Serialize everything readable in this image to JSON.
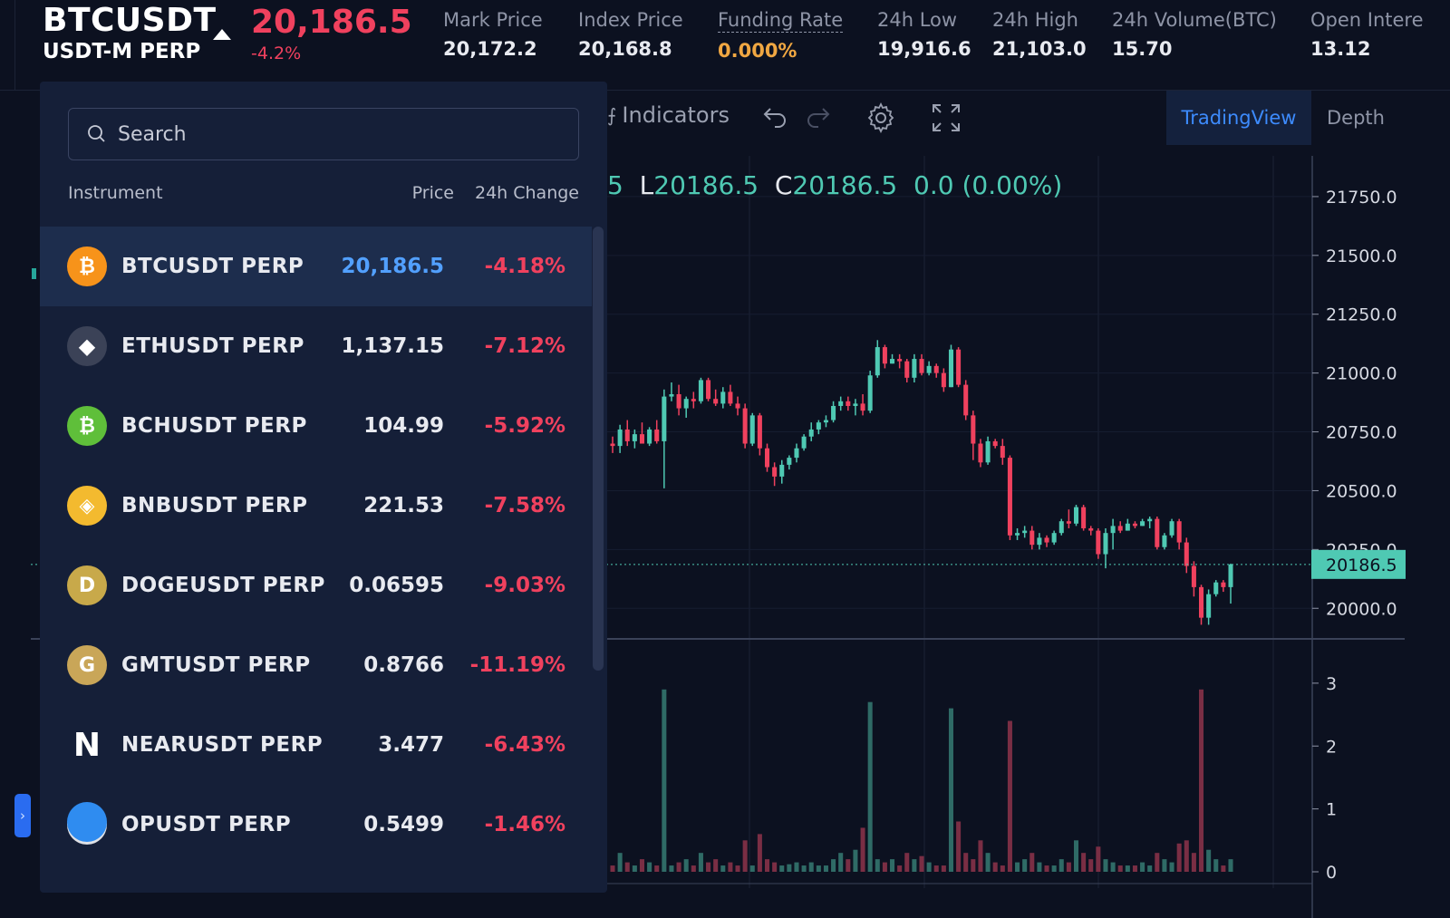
{
  "header": {
    "symbol": "BTCUSDT",
    "symbol_sub": "USDT-M PERP",
    "last_price": "20,186.5",
    "last_change": "-4.2%",
    "stats": [
      {
        "label": "Mark Price",
        "value": "20,172.2",
        "color": "#e8eaf0"
      },
      {
        "label": "Index Price",
        "value": "20,168.8",
        "color": "#e8eaf0"
      },
      {
        "label": "Funding Rate",
        "value": "0.000%",
        "color": "#f0a742"
      },
      {
        "label": "24h Low",
        "value": "19,916.6",
        "color": "#e8eaf0"
      },
      {
        "label": "24h High",
        "value": "21,103.0",
        "color": "#e8eaf0"
      },
      {
        "label": "24h Volume(BTC)",
        "value": "15.70",
        "color": "#e8eaf0"
      },
      {
        "label": "Open Intere",
        "value": "13.12",
        "color": "#e8eaf0"
      }
    ]
  },
  "toolbar": {
    "indicators_label": "Indicators",
    "tab_tradingview": "TradingView",
    "tab_depth": "Depth",
    "active_tab": "TradingView"
  },
  "ohlc": {
    "o_tail": "5",
    "l_key": "L",
    "l_val": "20186.5",
    "c_key": "C",
    "c_val": "20186.5",
    "change": "0.0 (0.00%)"
  },
  "dropdown": {
    "search_placeholder": "Search",
    "col_instrument": "Instrument",
    "col_price": "Price",
    "col_change": "24h Change",
    "rows": [
      {
        "name": "BTCUSDT PERP",
        "price": "20,186.5",
        "change": "-4.18%",
        "icon": "bitcoin-icon",
        "icon_color": "#f7931a",
        "glyph": "₿",
        "active": true
      },
      {
        "name": "ETHUSDT PERP",
        "price": "1,137.15",
        "change": "-7.12%",
        "icon": "ethereum-icon",
        "icon_color": "#3b4257",
        "glyph": "◆",
        "active": false
      },
      {
        "name": "BCHUSDT PERP",
        "price": "104.99",
        "change": "-5.92%",
        "icon": "bitcoin-cash-icon",
        "icon_color": "#5fbf3a",
        "glyph": "₿",
        "active": false
      },
      {
        "name": "BNBUSDT PERP",
        "price": "221.53",
        "change": "-7.58%",
        "icon": "bnb-icon",
        "icon_color": "#f3ba2f",
        "glyph": "◈",
        "active": false
      },
      {
        "name": "DOGEUSDT PERP",
        "price": "0.06595",
        "change": "-9.03%",
        "icon": "dogecoin-icon",
        "icon_color": "#c8a94a",
        "glyph": "D",
        "active": false
      },
      {
        "name": "GMTUSDT PERP",
        "price": "0.8766",
        "change": "-11.19%",
        "icon": "gmt-icon",
        "icon_color": "#c9a658",
        "glyph": "G",
        "active": false
      },
      {
        "name": "NEARUSDT PERP",
        "price": "3.477",
        "change": "-6.43%",
        "icon": "near-icon",
        "icon_color": "#151f38",
        "glyph": "N",
        "active": false
      },
      {
        "name": "OPUSDT PERP",
        "price": "0.5499",
        "change": "-1.46%",
        "icon": "op-icon",
        "icon_color": "#dfe1e6",
        "glyph": "≡",
        "active": false
      }
    ]
  },
  "chart_data": {
    "type": "candlestick",
    "price_ticks": [
      "21750.0",
      "21500.0",
      "21250.0",
      "21000.0",
      "20750.0",
      "20500.0",
      "20250.0",
      "20000.0"
    ],
    "price_ylim": [
      19870,
      21950
    ],
    "current_price": 20186.5,
    "current_price_label": "20186.5",
    "volume_ticks": [
      "3",
      "2",
      "1",
      "0"
    ],
    "volume_ylim": [
      0,
      3.2
    ],
    "up_color": "#4fc9b3",
    "down_color": "#f0415e",
    "candles": [
      [
        20700,
        20730,
        20660,
        20690
      ],
      [
        20690,
        20780,
        20660,
        20760
      ],
      [
        20760,
        20800,
        20690,
        20710
      ],
      [
        20710,
        20760,
        20680,
        20740
      ],
      [
        20740,
        20790,
        20700,
        20700
      ],
      [
        20700,
        20770,
        20690,
        20760
      ],
      [
        20760,
        20800,
        20700,
        20710
      ],
      [
        20710,
        20930,
        20510,
        20900
      ],
      [
        20900,
        20960,
        20880,
        20910
      ],
      [
        20910,
        20950,
        20820,
        20850
      ],
      [
        20850,
        20900,
        20810,
        20890
      ],
      [
        20890,
        20920,
        20850,
        20880
      ],
      [
        20880,
        20980,
        20870,
        20970
      ],
      [
        20970,
        20980,
        20880,
        20890
      ],
      [
        20890,
        20930,
        20860,
        20870
      ],
      [
        20870,
        20940,
        20850,
        20920
      ],
      [
        20920,
        20950,
        20860,
        20870
      ],
      [
        20870,
        20900,
        20820,
        20850
      ],
      [
        20850,
        20870,
        20680,
        20700
      ],
      [
        20700,
        20830,
        20690,
        20820
      ],
      [
        20820,
        20830,
        20650,
        20680
      ],
      [
        20680,
        20700,
        20580,
        20600
      ],
      [
        20600,
        20620,
        20520,
        20560
      ],
      [
        20560,
        20630,
        20530,
        20610
      ],
      [
        20610,
        20650,
        20590,
        20640
      ],
      [
        20640,
        20700,
        20620,
        20680
      ],
      [
        20680,
        20740,
        20670,
        20730
      ],
      [
        20730,
        20790,
        20710,
        20760
      ],
      [
        20760,
        20800,
        20740,
        20790
      ],
      [
        20790,
        20820,
        20770,
        20800
      ],
      [
        20800,
        20880,
        20790,
        20860
      ],
      [
        20860,
        20900,
        20840,
        20880
      ],
      [
        20880,
        20900,
        20840,
        20860
      ],
      [
        20860,
        20890,
        20820,
        20870
      ],
      [
        20870,
        20910,
        20820,
        20840
      ],
      [
        20840,
        21010,
        20830,
        20990
      ],
      [
        20990,
        21140,
        20980,
        21110
      ],
      [
        21110,
        21120,
        21020,
        21040
      ],
      [
        21040,
        21080,
        21040,
        21060
      ],
      [
        21060,
        21080,
        21020,
        21050
      ],
      [
        21050,
        21060,
        20960,
        20980
      ],
      [
        20980,
        21080,
        20960,
        21060
      ],
      [
        21060,
        21080,
        20990,
        21000
      ],
      [
        21000,
        21050,
        20990,
        21030
      ],
      [
        21030,
        21040,
        20980,
        21000
      ],
      [
        21000,
        21020,
        20920,
        20940
      ],
      [
        20940,
        21120,
        20940,
        21100
      ],
      [
        21100,
        21110,
        20940,
        20950
      ],
      [
        20950,
        20970,
        20800,
        20820
      ],
      [
        20820,
        20840,
        20630,
        20700
      ],
      [
        20700,
        20720,
        20600,
        20620
      ],
      [
        20620,
        20730,
        20610,
        20710
      ],
      [
        20710,
        20720,
        20680,
        20690
      ],
      [
        20690,
        20720,
        20610,
        20640
      ],
      [
        20640,
        20650,
        20290,
        20310
      ],
      [
        20310,
        20340,
        20290,
        20320
      ],
      [
        20320,
        20350,
        20300,
        20330
      ],
      [
        20330,
        20350,
        20250,
        20270
      ],
      [
        20270,
        20320,
        20250,
        20300
      ],
      [
        20300,
        20310,
        20260,
        20280
      ],
      [
        20280,
        20330,
        20270,
        20320
      ],
      [
        20320,
        20380,
        20310,
        20370
      ],
      [
        20370,
        20420,
        20340,
        20360
      ],
      [
        20360,
        20440,
        20350,
        20430
      ],
      [
        20430,
        20440,
        20330,
        20340
      ],
      [
        20340,
        20350,
        20310,
        20330
      ],
      [
        20330,
        20340,
        20210,
        20230
      ],
      [
        20230,
        20340,
        20170,
        20320
      ],
      [
        20320,
        20380,
        20250,
        20350
      ],
      [
        20350,
        20370,
        20320,
        20330
      ],
      [
        20330,
        20380,
        20330,
        20360
      ],
      [
        20360,
        20370,
        20340,
        20350
      ],
      [
        20350,
        20380,
        20350,
        20370
      ],
      [
        20370,
        20390,
        20340,
        20380
      ],
      [
        20380,
        20390,
        20250,
        20260
      ],
      [
        20260,
        20320,
        20250,
        20310
      ],
      [
        20310,
        20380,
        20300,
        20370
      ],
      [
        20370,
        20380,
        20250,
        20280
      ],
      [
        20280,
        20300,
        20150,
        20180
      ],
      [
        20180,
        20200,
        20050,
        20090
      ],
      [
        20090,
        20100,
        19930,
        19960
      ],
      [
        19960,
        20080,
        19930,
        20060
      ],
      [
        20060,
        20120,
        20050,
        20110
      ],
      [
        20110,
        20120,
        20070,
        20090
      ],
      [
        20090,
        20190,
        20020,
        20186.5
      ]
    ],
    "volumes": [
      0.1,
      0.3,
      0.15,
      0.1,
      0.2,
      0.15,
      0.1,
      2.9,
      0.1,
      0.15,
      0.2,
      0.1,
      0.3,
      0.15,
      0.2,
      0.1,
      0.15,
      0.1,
      0.5,
      0.1,
      0.6,
      0.2,
      0.15,
      0.1,
      0.12,
      0.15,
      0.1,
      0.15,
      0.1,
      0.1,
      0.2,
      0.3,
      0.2,
      0.35,
      0.7,
      2.7,
      0.2,
      0.15,
      0.2,
      0.1,
      0.3,
      0.2,
      0.25,
      0.15,
      0.1,
      0.1,
      2.6,
      0.8,
      0.3,
      0.2,
      0.5,
      0.3,
      0.15,
      0.1,
      2.4,
      0.15,
      0.2,
      0.3,
      0.15,
      0.1,
      0.1,
      0.2,
      0.15,
      0.5,
      0.3,
      0.2,
      0.4,
      0.2,
      0.15,
      0.1,
      0.1,
      0.1,
      0.15,
      0.1,
      0.3,
      0.2,
      0.15,
      0.45,
      0.5,
      0.3,
      2.9,
      0.35,
      0.2,
      0.1,
      0.2
    ]
  }
}
